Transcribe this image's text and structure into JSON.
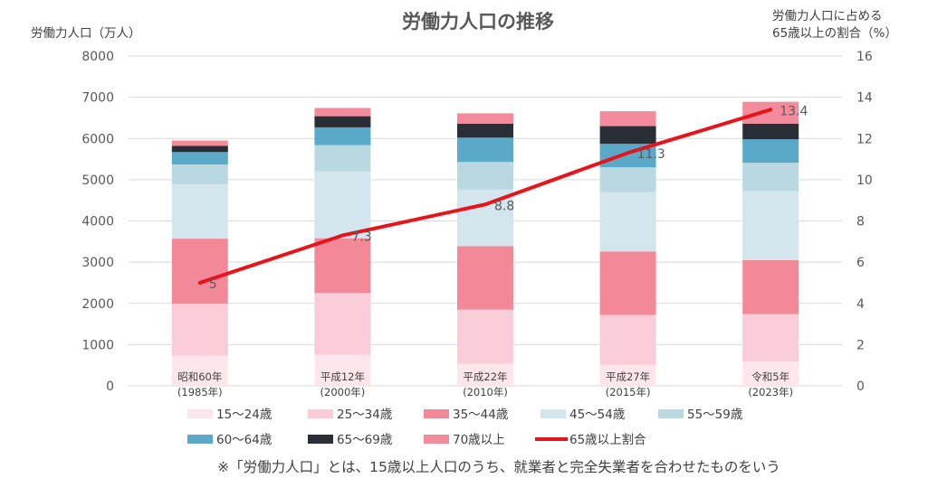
{
  "chart_data": {
    "type": "bar",
    "title": "労働力人口の推移",
    "ylabel_left": "労働力人口（万人）",
    "ylabel_right": [
      "労働力人口に占める",
      "65歳以上の割合（%）"
    ],
    "ylim_left": [
      0,
      8000
    ],
    "ylim_right": [
      0,
      16
    ],
    "ticks_left": [
      "0",
      "1000",
      "2000",
      "3000",
      "4000",
      "5000",
      "6000",
      "7000",
      "8000"
    ],
    "ticks_right": [
      "0",
      "2",
      "4",
      "6",
      "8",
      "10",
      "12",
      "14",
      "16"
    ],
    "grid": true,
    "categories": [
      [
        "昭和60年",
        "(1985年)"
      ],
      [
        "平成12年",
        "(2000年)"
      ],
      [
        "平成22年",
        "(2010年)"
      ],
      [
        "平成27年",
        "(2015年)"
      ],
      [
        "令和5年",
        "(2023年)"
      ]
    ],
    "series": [
      {
        "name": "15〜24歳",
        "color": "#FDE6EB",
        "values": [
          730,
          750,
          540,
          510,
          590
        ]
      },
      {
        "name": "25〜34歳",
        "color": "#F9CCD7",
        "values": [
          1260,
          1500,
          1310,
          1210,
          1150
        ]
      },
      {
        "name": "35〜44歳",
        "color": "#F38898",
        "values": [
          1580,
          1330,
          1540,
          1540,
          1310
        ]
      },
      {
        "name": "45〜54歳",
        "color": "#D3E6EE",
        "values": [
          1320,
          1620,
          1370,
          1440,
          1670
        ]
      },
      {
        "name": "55〜59歳",
        "color": "#B9D8E1",
        "values": [
          480,
          640,
          670,
          600,
          690
        ]
      },
      {
        "name": "60〜64歳",
        "color": "#5BA9C8",
        "values": [
          300,
          430,
          590,
          570,
          570
        ]
      },
      {
        "name": "65〜69歳",
        "color": "#2A2E36",
        "values": [
          150,
          270,
          340,
          430,
          380
        ]
      },
      {
        "name": "70歳以上",
        "color": "#F48B9C",
        "values": [
          130,
          200,
          250,
          360,
          530
        ]
      }
    ],
    "line": {
      "name": "65歳以上割合",
      "color": "#E8141C",
      "values": [
        5,
        7.3,
        8.8,
        11.3,
        13.4
      ],
      "labels": [
        "5",
        "7.3",
        "8.8",
        "11.3",
        "13.4"
      ]
    },
    "legend_position": "bottom"
  },
  "note": "※「労働力人口」とは、15歳以上人口のうち、就業者と完全失業者を合わせたものをいう"
}
